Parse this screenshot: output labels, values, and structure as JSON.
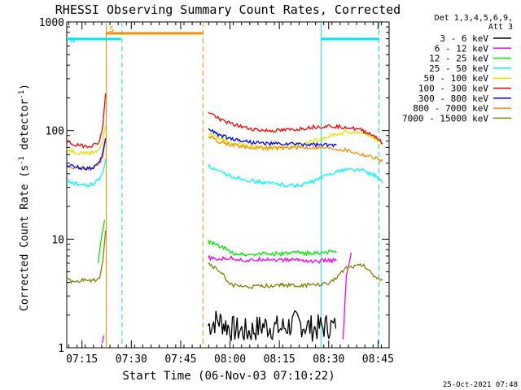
{
  "chart_data": {
    "type": "line",
    "title": "RHESSI Observing Summary Count Rates, Corrected",
    "xlabel": "Start Time (06-Nov-03 07:10:22)",
    "ylabel": "Corrected Count Rate (s",
    "ylabel_sup": "-1",
    "ylabel_mid": " detector",
    "ylabel_sup2": "-1",
    "ylabel_end": ")",
    "yscale": "log",
    "ylim": [
      1,
      1000
    ],
    "xlim_minutes": [
      0,
      98
    ],
    "x_unit": "minutes after 07:10:22",
    "ytick_labels": [
      "1",
      "10",
      "100",
      "1000"
    ],
    "xticks": [
      {
        "label": "07:15",
        "t": 4.63
      },
      {
        "label": "07:30",
        "t": 19.63
      },
      {
        "label": "07:45",
        "t": 34.63
      },
      {
        "label": "08:00",
        "t": 49.63
      },
      {
        "label": "08:15",
        "t": 64.63
      },
      {
        "label": "08:30",
        "t": 79.63
      },
      {
        "label": "08:45",
        "t": 94.63
      }
    ],
    "detector_info": [
      "Det 1,3,4,5,6,9,",
      "Att 3"
    ],
    "footer_stamp": "25-Oct-2021 07:48",
    "flags": [
      {
        "label": "S",
        "color": "#ff8c00",
        "t_start": 11.9,
        "t_end": 41.3
      },
      {
        "label": "N",
        "color": "#00e5ee",
        "t_start": 0.0,
        "t_end": 16.5
      },
      {
        "label": "",
        "color": "#00e5ee",
        "t_start": 77.4,
        "t_end": 94.8
      }
    ],
    "vertical_lines": [
      {
        "t": 12.0,
        "color": "#ff8c00",
        "style": "solid"
      },
      {
        "t": 16.8,
        "color": "#00e5ee",
        "style": "dashed"
      },
      {
        "t": 41.4,
        "color": "#ff8c00",
        "style": "dashed"
      },
      {
        "t": 77.3,
        "color": "#00e5ee",
        "style": "solid"
      },
      {
        "t": 94.9,
        "color": "#00e5ee",
        "style": "dashed"
      }
    ],
    "series": [
      {
        "name": "3 - 6 keV",
        "color": "#000000",
        "segments": [
          {
            "t": [
              43,
              46,
              50,
              55,
              60,
              65,
              70,
              75,
              80,
              81.8
            ],
            "y": [
              1.6,
              1.8,
              1.5,
              1.4,
              1.6,
              1.5,
              1.7,
              1.5,
              1.6,
              1.5
            ]
          }
        ]
      },
      {
        "name": "6 - 12 keV",
        "color": "#ff00ff",
        "segments": [
          {
            "t": [
              10.8,
              11.4
            ],
            "y": [
              1.1,
              1.3
            ]
          },
          {
            "t": [
              43,
              45,
              50,
              55,
              60,
              65,
              70,
              75,
              80,
              82
            ],
            "y": [
              6.8,
              6.5,
              6.7,
              6.3,
              6.6,
              6.4,
              6.5,
              6.2,
              6.4,
              6.3
            ]
          },
          {
            "t": [
              84,
              85,
              86.5
            ],
            "y": [
              1.2,
              4.5,
              7.5
            ]
          }
        ]
      },
      {
        "name": "12 - 25 keV",
        "color": "#00ee00",
        "segments": [
          {
            "t": [
              9.5,
              10.5,
              11.5
            ],
            "y": [
              6,
              10,
              15
            ]
          },
          {
            "t": [
              43,
              45,
              48,
              50,
              55,
              60,
              65,
              70,
              75,
              80,
              82
            ],
            "y": [
              9.5,
              9.0,
              8.2,
              7.5,
              7.2,
              7.4,
              7.3,
              7.5,
              7.4,
              7.6,
              7.5
            ]
          }
        ]
      },
      {
        "name": "25 - 50 keV",
        "color": "#00ffff",
        "segments": [
          {
            "t": [
              0,
              3,
              6,
              8,
              10,
              11,
              11.8
            ],
            "y": [
              35,
              32,
              31,
              32,
              36,
              42,
              55
            ]
          },
          {
            "t": [
              43,
              46,
              50,
              55,
              60,
              65,
              70,
              75,
              80,
              85,
              90,
              94,
              96
            ],
            "y": [
              47,
              42,
              38,
              35,
              33,
              32,
              31,
              34,
              40,
              44,
              43,
              38,
              33
            ]
          }
        ]
      },
      {
        "name": "50 - 100 keV",
        "color": "#e5e500",
        "segments": [
          {
            "t": [
              0,
              3,
              6,
              8,
              10,
              11,
              11.8
            ],
            "y": [
              67,
              63,
              62,
              63,
              68,
              80,
              110
            ]
          },
          {
            "t": [
              43,
              46,
              50,
              55,
              60,
              65,
              70,
              75,
              80,
              85,
              90,
              94,
              96
            ],
            "y": [
              95,
              86,
              78,
              72,
              70,
              70,
              72,
              80,
              90,
              97,
              95,
              85,
              73
            ]
          }
        ]
      },
      {
        "name": "100 - 300 keV",
        "color": "#ff0000",
        "segments": [
          {
            "t": [
              0,
              3,
              6,
              8,
              10,
              11,
              11.8
            ],
            "y": [
              78,
              73,
              72,
              73,
              80,
              110,
              220
            ]
          },
          {
            "t": [
              43,
              46,
              50,
              55,
              60,
              65,
              70,
              75,
              80,
              85,
              90,
              94,
              96
            ],
            "y": [
              150,
              130,
              115,
              105,
              100,
              100,
              103,
              108,
              110,
              108,
              100,
              88,
              76
            ]
          }
        ]
      },
      {
        "name": "300 - 800 keV",
        "color": "#0000ff",
        "segments": [
          {
            "t": [
              0,
              3,
              6,
              8,
              10,
              11,
              11.8
            ],
            "y": [
              48,
              46,
              45,
              46,
              50,
              62,
              85
            ]
          },
          {
            "t": [
              43,
              46,
              50,
              55,
              60,
              65,
              70,
              75,
              80,
              82
            ],
            "y": [
              105,
              92,
              84,
              79,
              76,
              75,
              75,
              74,
              73,
              73
            ]
          }
        ]
      },
      {
        "name": "800 - 7000 keV",
        "color": "#ff8c00",
        "segments": [
          {
            "t": [
              0,
              3,
              6,
              8,
              10,
              11,
              11.8
            ],
            "y": [
              47,
              45,
              44,
              45,
              49,
              60,
              80
            ]
          },
          {
            "t": [
              43,
              46,
              50,
              55,
              60,
              65,
              70,
              75,
              80,
              85,
              90,
              94,
              96
            ],
            "y": [
              88,
              80,
              74,
              70,
              69,
              69,
              70,
              70,
              69,
              66,
              60,
              56,
              52
            ]
          }
        ]
      },
      {
        "name": "7000 - 15000 keV",
        "color": "#808000",
        "segments": [
          {
            "t": [
              0,
              3,
              6,
              8,
              10,
              11,
              11.8
            ],
            "y": [
              4.2,
              4.0,
              4.3,
              4.1,
              4.5,
              6.5,
              12
            ]
          },
          {
            "t": [
              43,
              46,
              48,
              50,
              55,
              60,
              65,
              70,
              75,
              80,
              85,
              90,
              94,
              96
            ],
            "y": [
              6.0,
              5.2,
              4.5,
              3.8,
              3.6,
              3.7,
              3.8,
              3.7,
              3.8,
              3.9,
              5.5,
              5.8,
              4.5,
              4.2
            ]
          }
        ]
      }
    ]
  }
}
